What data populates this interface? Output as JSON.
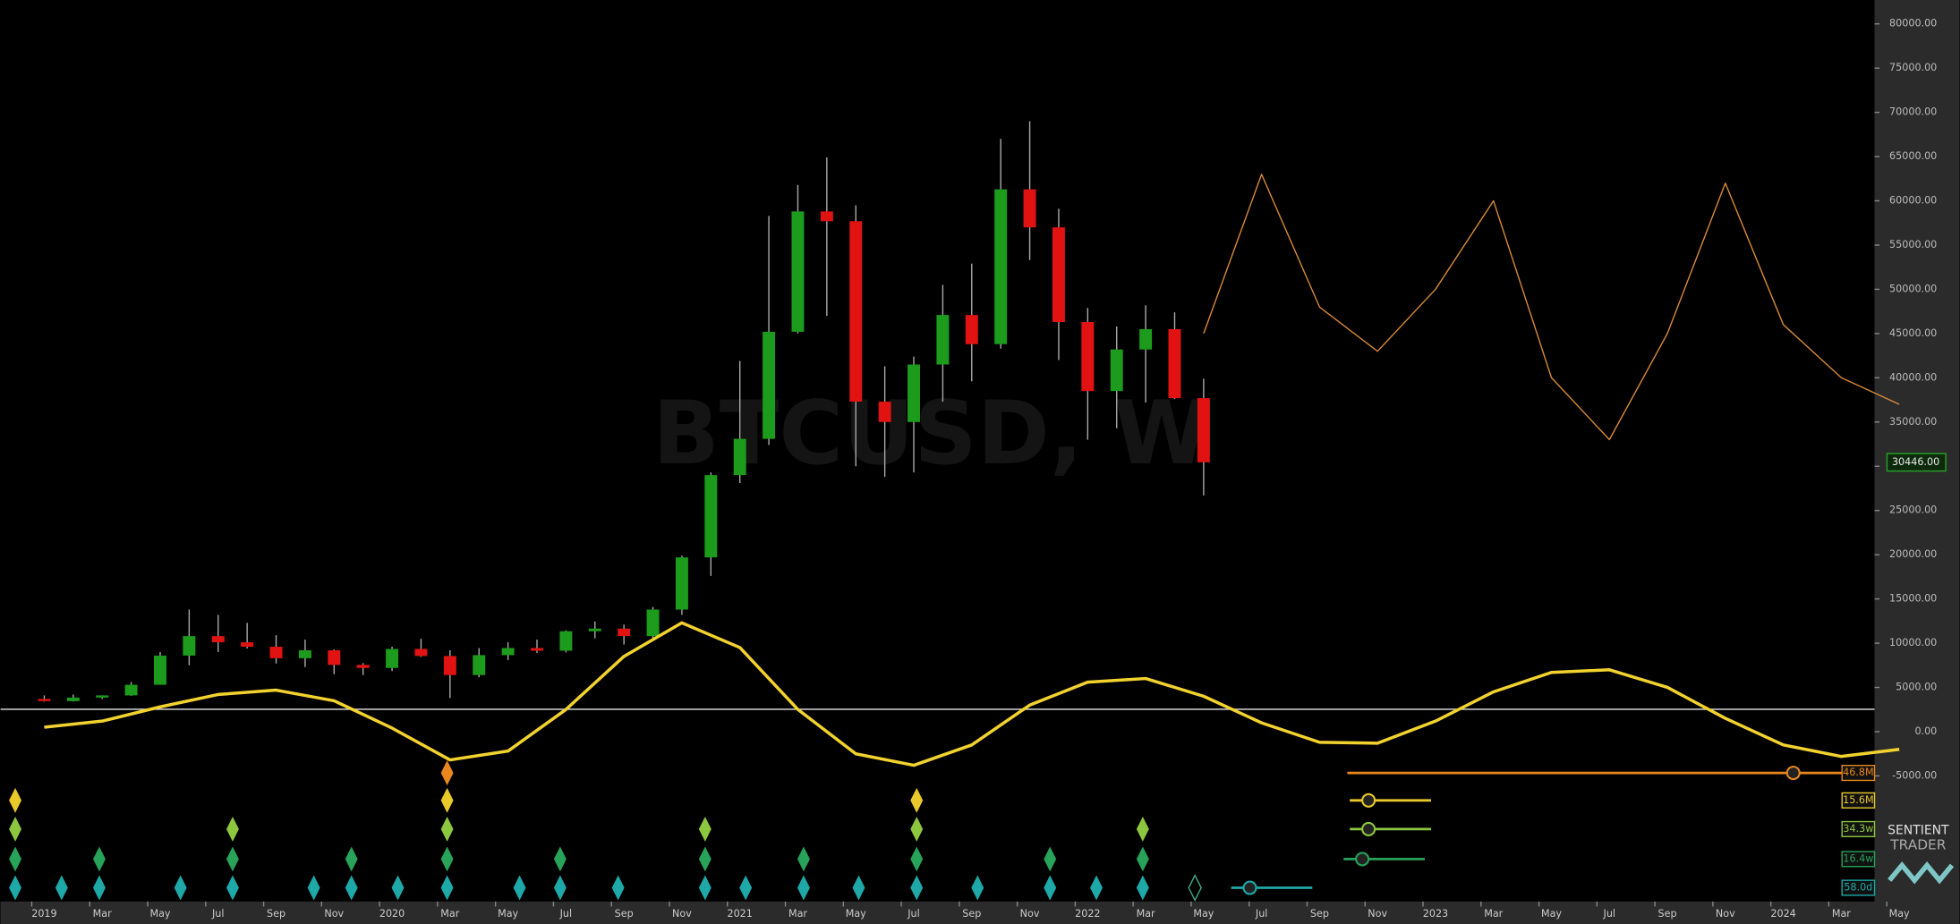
{
  "chart_data": {
    "type": "candlestick",
    "watermark": "BTCUSD, W",
    "brand": [
      "SENTIENT",
      "TRADER"
    ],
    "x_labels": [
      "2019",
      "Mar",
      "May",
      "Jul",
      "Sep",
      "Nov",
      "2020",
      "Mar",
      "May",
      "Jul",
      "Sep",
      "Nov",
      "2021",
      "Mar",
      "May",
      "Jul",
      "Sep",
      "Nov",
      "2022",
      "Mar",
      "May",
      "Jul",
      "Sep",
      "Nov",
      "2023",
      "Mar",
      "May",
      "Jul",
      "Sep",
      "Nov",
      "2024",
      "Mar",
      "May"
    ],
    "ylim": [
      -19200,
      82700
    ],
    "yticks": [
      {
        "value": 80000,
        "label": "80000.00"
      },
      {
        "value": 75000,
        "label": "75000.00"
      },
      {
        "value": 70000,
        "label": "70000.00"
      },
      {
        "value": 65000,
        "label": "65000.00"
      },
      {
        "value": 60000,
        "label": "60000.00"
      },
      {
        "value": 55000,
        "label": "55000.00"
      },
      {
        "value": 50000,
        "label": "50000.00"
      },
      {
        "value": 45000,
        "label": "45000.00"
      },
      {
        "value": 40000,
        "label": "40000.00"
      },
      {
        "value": 35000,
        "label": "35000.00"
      },
      {
        "value": 30000,
        "label": "30000.00"
      },
      {
        "value": 25000,
        "label": "25000.00"
      },
      {
        "value": 20000,
        "label": "20000.00"
      },
      {
        "value": 15000,
        "label": "15000.00"
      },
      {
        "value": 10000,
        "label": "10000.00"
      },
      {
        "value": 5000,
        "label": "5000.00"
      },
      {
        "value": 0,
        "label": "0.00"
      },
      {
        "value": -5000,
        "label": "-5000.00"
      }
    ],
    "last_price": {
      "value": 30446,
      "label": "30446.00"
    },
    "candles": {
      "open": [
        3700,
        3450,
        3850,
        4100,
        5300,
        8600,
        10800,
        10100,
        9600,
        8300,
        9200,
        7550,
        7200,
        9350,
        8550,
        6400,
        8650,
        9450,
        9150,
        11350,
        11650,
        10800,
        13800,
        19700,
        29000,
        33100,
        45200,
        58800,
        57700,
        37300,
        35000,
        41500,
        47100,
        43800,
        61300,
        57000,
        46300,
        38500,
        43200,
        45500,
        37700
      ],
      "high": [
        4100,
        4200,
        4100,
        5600,
        9000,
        13800,
        13200,
        12300,
        10900,
        10400,
        9300,
        7750,
        9600,
        10500,
        9200,
        9450,
        10100,
        10400,
        11450,
        12450,
        12100,
        14100,
        19900,
        29300,
        41900,
        58300,
        61800,
        64900,
        59500,
        41300,
        42400,
        50500,
        52900,
        67000,
        69000,
        59100,
        47900,
        45800,
        48200,
        47400,
        39900
      ],
      "low": [
        3400,
        3400,
        3700,
        4050,
        5300,
        7500,
        9000,
        9400,
        7700,
        7300,
        6500,
        6400,
        6850,
        8450,
        3800,
        6150,
        8100,
        8900,
        8950,
        10550,
        9850,
        10400,
        13200,
        17600,
        28100,
        32400,
        45000,
        47000,
        30000,
        28800,
        29300,
        37300,
        39600,
        43300,
        53300,
        42000,
        33000,
        34300,
        37200,
        37600,
        26700
      ],
      "close": [
        3450,
        3850,
        4100,
        5300,
        8600,
        10800,
        10100,
        9600,
        8300,
        9200,
        7550,
        7200,
        9350,
        8550,
        6400,
        8650,
        9450,
        9150,
        11350,
        11650,
        10800,
        13800,
        19700,
        29000,
        33100,
        45200,
        58800,
        57700,
        37300,
        35000,
        41500,
        47100,
        43800,
        61300,
        57000,
        46300,
        38500,
        43200,
        45500,
        37700,
        30446
      ]
    },
    "composite": {
      "name": "composite",
      "color": "#f2d22e",
      "values": [
        500,
        1200,
        2800,
        4200,
        4700,
        3500,
        400,
        -3200,
        -2200,
        2500,
        8500,
        12300,
        9500,
        2500,
        -2500,
        -3800,
        -1500,
        3000,
        5600,
        6000,
        4000,
        1000,
        -1200,
        -1300,
        1200,
        4500,
        6700,
        7000,
        5000,
        1500,
        -1500,
        -2800,
        -2000
      ]
    },
    "projection": {
      "name": "projection",
      "color": "#d98a3a",
      "values": [
        null,
        null,
        null,
        null,
        null,
        null,
        null,
        null,
        null,
        null,
        null,
        null,
        null,
        null,
        null,
        null,
        null,
        null,
        null,
        null,
        45000,
        63000,
        48000,
        43000,
        50000,
        60000,
        40000,
        33000,
        45000,
        62000,
        46000,
        40000,
        37000
      ]
    },
    "cycles": [
      {
        "label": "46.8M",
        "color": "#e8871e",
        "troughs": [
          13.9
        ]
      },
      {
        "label": "15.6M",
        "color": "#e8c82a",
        "troughs": [
          -1.0,
          13.9,
          30.1
        ]
      },
      {
        "label": "34.3w",
        "color": "#8dc63f",
        "troughs": [
          -1.0,
          6.5,
          13.9,
          22.8,
          30.1,
          37.9
        ]
      },
      {
        "label": "16.4w",
        "color": "#27a35a",
        "troughs": [
          -1.0,
          1.9,
          6.5,
          10.6,
          13.9,
          17.8,
          22.8,
          26.2,
          30.1,
          34.7,
          37.9
        ]
      },
      {
        "label": "58.0d",
        "color": "#1fa8a8",
        "troughs": [
          -1.0,
          0.6,
          1.9,
          4.7,
          6.5,
          9.3,
          10.6,
          12.2,
          13.9,
          16.4,
          17.8,
          19.8,
          22.8,
          24.2,
          26.2,
          28.1,
          30.1,
          32.2,
          34.7,
          36.3,
          37.9,
          39.7
        ]
      }
    ]
  }
}
